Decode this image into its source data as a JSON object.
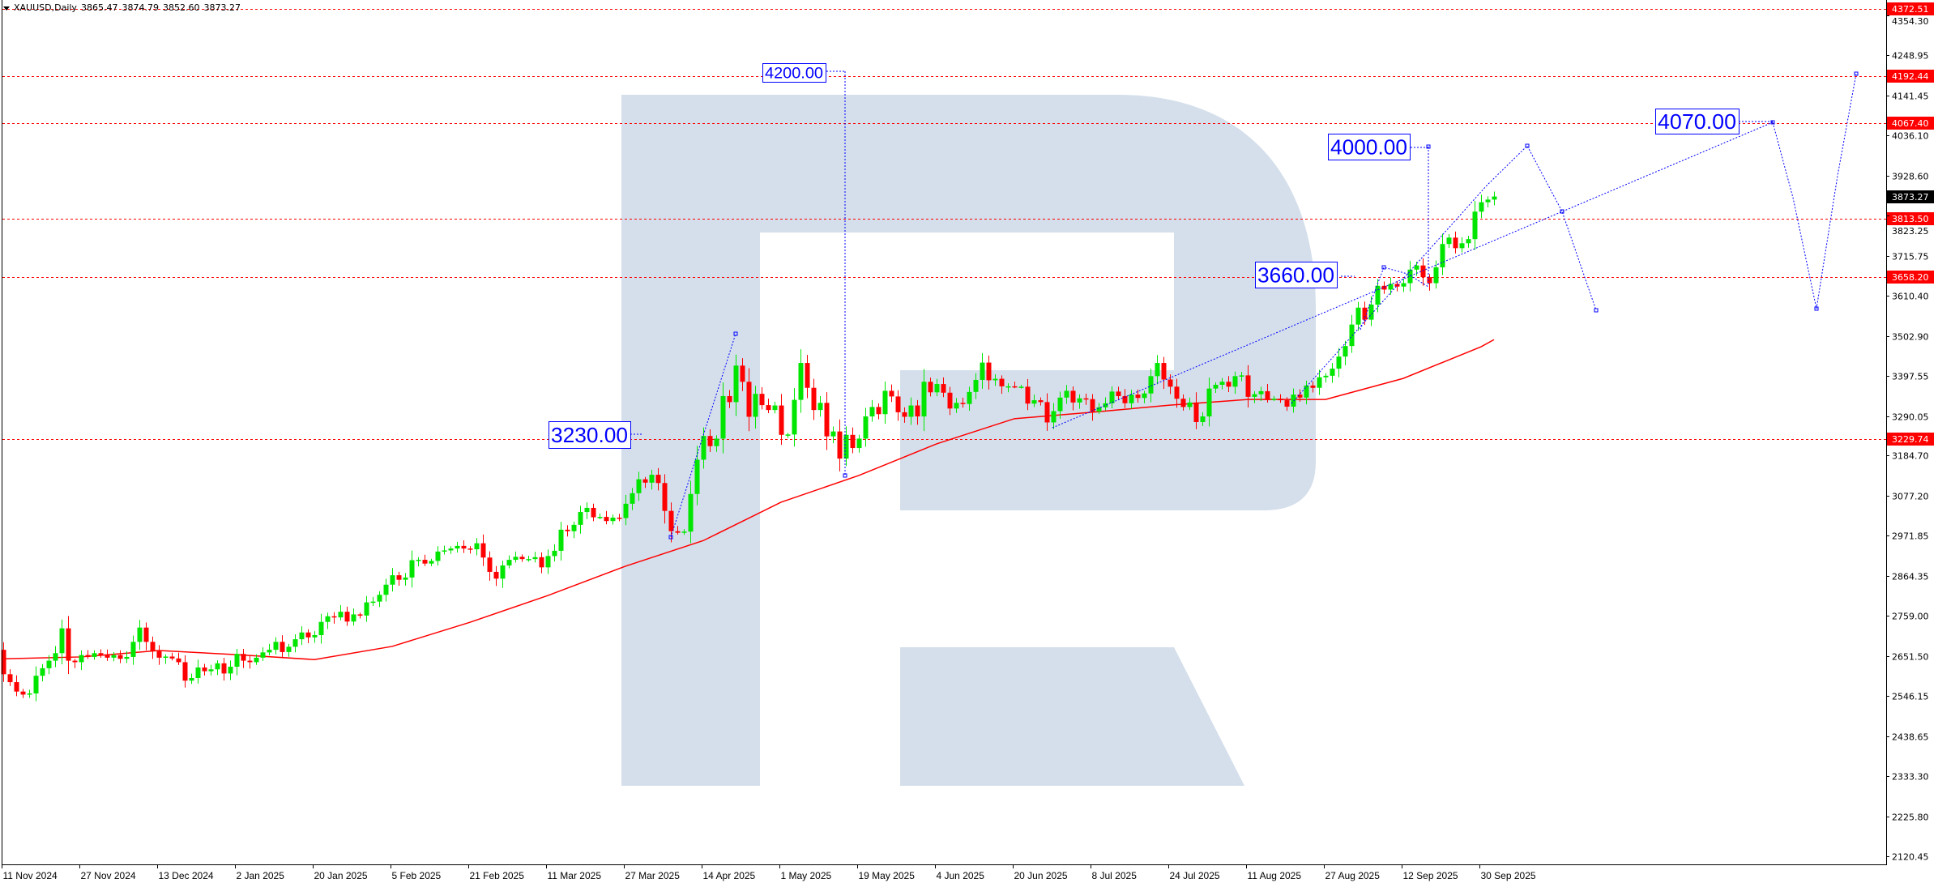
{
  "header": {
    "symbol": "XAUUSD,Daily",
    "open": "3865.47",
    "high": "3874.79",
    "low": "3852.60",
    "close": "3873.27"
  },
  "colors": {
    "bull": "#00e600",
    "bear": "#ff0000",
    "ma": "#ff0000",
    "level_line": "#ff0000",
    "annotation": "#0000ff",
    "watermark": "#d4dfeb",
    "current_price_bg": "#000000"
  },
  "chart_data": {
    "type": "candlestick",
    "symbol": "XAUUSD",
    "timeframe": "Daily",
    "ylim": [
      2099,
      4395
    ],
    "grid": false,
    "x_tick_labels": [
      "11 Nov 2024",
      "27 Nov 2024",
      "13 Dec 2024",
      "2 Jan 2025",
      "20 Jan 2025",
      "5 Feb 2025",
      "21 Feb 2025",
      "11 Mar 2025",
      "27 Mar 2025",
      "14 Apr 2025",
      "1 May 2025",
      "19 May 2025",
      "4 Jun 2025",
      "20 Jun 2025",
      "8 Jul 2025",
      "24 Jul 2025",
      "11 Aug 2025",
      "27 Aug 2025",
      "12 Sep 2025",
      "30 Sep 2025"
    ],
    "bars_per_x_tick": 12,
    "y_tick_labels": [
      "4354.30",
      "4248.95",
      "4141.45",
      "4036.10",
      "3928.60",
      "3823.25",
      "3715.75",
      "3610.40",
      "3502.90",
      "3397.55",
      "3290.05",
      "3184.70",
      "3077.20",
      "2971.85",
      "2864.35",
      "2759.00",
      "2651.50",
      "2546.15",
      "2438.65",
      "2333.30",
      "2225.80",
      "2120.45"
    ],
    "first_open": 2669,
    "closes": [
      2604,
      2583,
      2558,
      2550,
      2553,
      2600,
      2620,
      2640,
      2660,
      2726,
      2640,
      2636,
      2655,
      2650,
      2660,
      2655,
      2648,
      2655,
      2645,
      2650,
      2690,
      2728,
      2690,
      2665,
      2648,
      2651,
      2646,
      2636,
      2587,
      2594,
      2622,
      2612,
      2617,
      2633,
      2606,
      2624,
      2658,
      2640,
      2636,
      2648,
      2662,
      2669,
      2690,
      2663,
      2677,
      2697,
      2715,
      2702,
      2708,
      2743,
      2758,
      2755,
      2770,
      2744,
      2763,
      2760,
      2795,
      2797,
      2815,
      2842,
      2867,
      2855,
      2861,
      2907,
      2908,
      2898,
      2905,
      2930,
      2933,
      2938,
      2945,
      2938,
      2936,
      2952,
      2914,
      2876,
      2858,
      2893,
      2908,
      2916,
      2910,
      2910,
      2915,
      2888,
      2918,
      2932,
      2988,
      2984,
      3001,
      3035,
      3046,
      3021,
      3022,
      3011,
      3020,
      3019,
      3057,
      3085,
      3122,
      3113,
      3134,
      3112,
      3038,
      2984,
      2980,
      2983,
      3083,
      3174,
      3237,
      3210,
      3230,
      3343,
      3327,
      3424,
      3381,
      3288,
      3349,
      3319,
      3306,
      3318,
      3240,
      3241,
      3333,
      3431,
      3365,
      3306,
      3325,
      3236,
      3249,
      3177,
      3240,
      3205,
      3230,
      3289,
      3314,
      3295,
      3357,
      3342,
      3300,
      3288,
      3318,
      3289,
      3381,
      3353,
      3375,
      3352,
      3310,
      3325,
      3322,
      3354,
      3386,
      3432,
      3385,
      3389,
      3369,
      3369,
      3368,
      3368,
      3323,
      3332,
      3327,
      3273,
      3303,
      3339,
      3357,
      3326,
      3337,
      3335,
      3302,
      3313,
      3324,
      3355,
      3343,
      3324,
      3347,
      3338,
      3350,
      3396,
      3431,
      3387,
      3368,
      3336,
      3314,
      3326,
      3274,
      3289,
      3363,
      3373,
      3381,
      3368,
      3396,
      3398,
      3341,
      3348,
      3356,
      3335,
      3336,
      3332,
      3315,
      3347,
      3339,
      3371,
      3365,
      3393,
      3397,
      3416,
      3448,
      3476,
      3533,
      3578,
      3546,
      3586,
      3636,
      3626,
      3641,
      3634,
      3643,
      3679,
      3690,
      3659,
      3643,
      3685,
      3747,
      3764,
      3736,
      3749,
      3760,
      3833,
      3858,
      3865,
      3873.27
    ],
    "moving_average_at_x_ticks": [
      2645,
      2650,
      2667,
      2656,
      2643,
      2678,
      2742,
      2813,
      2891,
      2959,
      3061,
      3132,
      3216,
      3283,
      3300,
      3319,
      3334,
      3334,
      3390,
      3474
    ],
    "moving_average_last": 3493,
    "horizontal_levels": [
      {
        "price": 4372.51,
        "label": "4372.51"
      },
      {
        "price": 4192.44,
        "label": "4192.44"
      },
      {
        "price": 4067.4,
        "label": "4067.40"
      },
      {
        "price": 3813.5,
        "label": "3813.50"
      },
      {
        "price": 3658.2,
        "label": "3658.20"
      },
      {
        "price": 3229.74,
        "label": "3229.74"
      }
    ],
    "current_price": {
      "price": 3873.27,
      "label": "3873.27"
    },
    "annotations": [
      {
        "label": "4200.00",
        "price": 4200
      },
      {
        "label": "4070.00",
        "price": 4070
      },
      {
        "label": "4000.00",
        "price": 4000
      },
      {
        "label": "3660.00",
        "price": 3660
      },
      {
        "label": "3230.00",
        "price": 3230
      }
    ]
  }
}
